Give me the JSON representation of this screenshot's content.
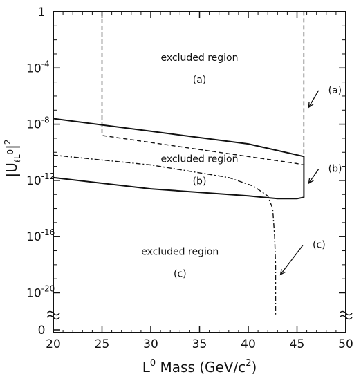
{
  "chart_data": {
    "type": "line",
    "xlabel_main": "L",
    "xlabel_sup": "0",
    "xlabel_rest": " Mass (GeV/c",
    "xlabel_sup2": "2",
    "xlabel_end": ")",
    "ylabel": "|U",
    "ylabel_sub": "ℓL",
    "ylabel_sup": "0",
    "ylabel_end": "|",
    "ylabel_exp": "2",
    "xlim": [
      20,
      50
    ],
    "y_scale": "log10 with broken axis below 1e-20",
    "x_ticks": [
      "20",
      "25",
      "30",
      "35",
      "40",
      "45",
      "50"
    ],
    "y_ticks": [
      {
        "base": "1",
        "exp": "",
        "log": 0
      },
      {
        "base": "10",
        "exp": "-4",
        "log": -4
      },
      {
        "base": "10",
        "exp": "-8",
        "log": -8
      },
      {
        "base": "10",
        "exp": "-12",
        "log": -12
      },
      {
        "base": "10",
        "exp": "-16",
        "log": -16
      },
      {
        "base": "10",
        "exp": "-20",
        "log": -20
      }
    ],
    "y_zero_label": "0",
    "series": [
      {
        "id": "a",
        "style": "dashed",
        "points": [
          [
            25,
            0
          ],
          [
            25,
            -8.8
          ],
          [
            45,
            -10.8
          ],
          [
            45.7,
            -10.9
          ],
          [
            45.7,
            0
          ]
        ]
      },
      {
        "id": "b-upper",
        "style": "solid",
        "points": [
          [
            20,
            -7.6
          ],
          [
            30,
            -8.5
          ],
          [
            40,
            -9.4
          ],
          [
            45.7,
            -10.3
          ],
          [
            45.7,
            -10.8
          ]
        ]
      },
      {
        "id": "b-lower",
        "style": "solid",
        "points": [
          [
            20,
            -11.8
          ],
          [
            30,
            -12.6
          ],
          [
            40,
            -13.1
          ],
          [
            43,
            -13.3
          ],
          [
            45,
            -13.3
          ],
          [
            45.7,
            -13.2
          ],
          [
            45.7,
            -10.8
          ]
        ]
      },
      {
        "id": "c",
        "style": "dash-dot",
        "points": [
          [
            20,
            -10.2
          ],
          [
            30,
            -10.9
          ],
          [
            38,
            -11.8
          ],
          [
            40.5,
            -12.4
          ],
          [
            42,
            -13.1
          ],
          [
            42.5,
            -14
          ],
          [
            42.7,
            -16
          ],
          [
            42.8,
            -18
          ],
          [
            42.8,
            -23.2
          ]
        ]
      }
    ],
    "regions": [
      {
        "label": "excluded region",
        "sub": "(a)",
        "x": 35,
        "y": -3.5
      },
      {
        "label": "excluded region",
        "sub": "(b)",
        "x": 35,
        "y": -10.7
      },
      {
        "label": "excluded region",
        "sub": "(c)",
        "x": 33,
        "y": -17.3
      }
    ],
    "annotations": [
      {
        "text": "(a)",
        "tx": 48.2,
        "ty": -5.8,
        "ax": 46.2,
        "ay": -6.8
      },
      {
        "text": "(b)",
        "tx": 48.2,
        "ty": -11.4,
        "ax": 46.2,
        "ay": -12.2
      },
      {
        "text": "(c)",
        "tx": 46.6,
        "ty": -16.8,
        "ax": 43.3,
        "ay": -18.7
      }
    ]
  }
}
